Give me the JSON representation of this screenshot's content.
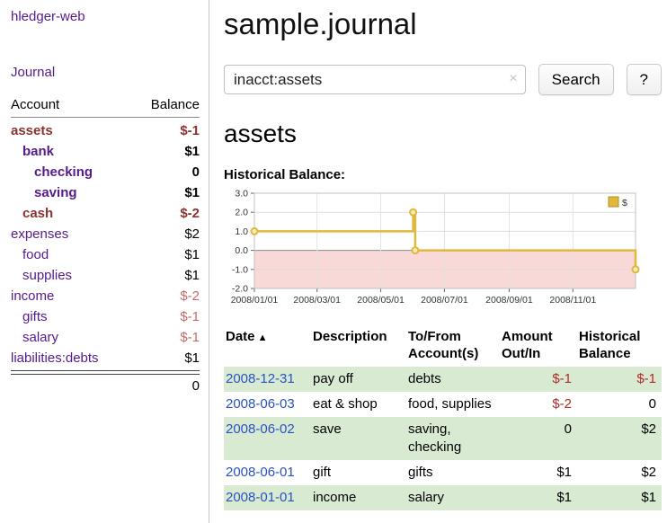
{
  "app": {
    "name": "hledger-web"
  },
  "sidebar": {
    "journal_link": "Journal",
    "account_header": "Account",
    "balance_header": "Balance",
    "accounts": [
      {
        "name": "assets",
        "depth": 0,
        "bold": true,
        "name_negative": true,
        "balance": "$-1",
        "balance_negative": true
      },
      {
        "name": "bank",
        "depth": 1,
        "bold": true,
        "name_negative": false,
        "balance": "$1",
        "balance_negative": false
      },
      {
        "name": "checking",
        "depth": 2,
        "bold": true,
        "name_negative": false,
        "balance": "0",
        "balance_negative": false
      },
      {
        "name": "saving",
        "depth": 2,
        "bold": true,
        "name_negative": false,
        "balance": "$1",
        "balance_negative": false
      },
      {
        "name": "cash",
        "depth": 1,
        "bold": true,
        "name_negative": true,
        "balance": "$-2",
        "balance_negative": true
      },
      {
        "name": "expenses",
        "depth": 0,
        "bold": false,
        "name_negative": false,
        "balance": "$2",
        "balance_negative": false
      },
      {
        "name": "food",
        "depth": 1,
        "bold": false,
        "name_negative": false,
        "balance": "$1",
        "balance_negative": false
      },
      {
        "name": "supplies",
        "depth": 1,
        "bold": false,
        "name_negative": false,
        "balance": "$1",
        "balance_negative": false
      },
      {
        "name": "income",
        "depth": 0,
        "bold": false,
        "name_negative": false,
        "balance": "$-2",
        "balance_negative": true
      },
      {
        "name": "gifts",
        "depth": 1,
        "bold": false,
        "name_negative": false,
        "balance": "$-1",
        "balance_negative": true
      },
      {
        "name": "salary",
        "depth": 1,
        "bold": false,
        "name_negative": false,
        "balance": "$-1",
        "balance_negative": true
      },
      {
        "name": "liabilities:debts",
        "depth": 0,
        "bold": false,
        "name_negative": false,
        "balance": "$1",
        "balance_negative": false
      }
    ],
    "total": "0"
  },
  "header": {
    "title": "sample.journal"
  },
  "search": {
    "value": "inacct:assets",
    "clear_icon": "×",
    "button_label": "Search",
    "help_label": "?"
  },
  "main": {
    "section_heading": "assets",
    "chart_heading": "Historical Balance:"
  },
  "chart_data": {
    "type": "line",
    "step": true,
    "title": "Historical Balance",
    "legend": {
      "position": "top-right",
      "entries": [
        "$"
      ]
    },
    "grid": true,
    "x_ticks": [
      "2008/01/01",
      "2008/03/01",
      "2008/05/01",
      "2008/07/01",
      "2008/09/01",
      "2008/11/01"
    ],
    "y_ticks": [
      3.0,
      2.0,
      1.0,
      0.0,
      -1.0,
      -2.0
    ],
    "ylim": [
      -2.0,
      3.0
    ],
    "xlim": [
      "2008-01-01",
      "2008-12-31"
    ],
    "series": [
      {
        "name": "$",
        "color": "#e0b83e",
        "points": [
          [
            "2008-01-01",
            1.0
          ],
          [
            "2008-06-01",
            2.0
          ],
          [
            "2008-06-03",
            0.0
          ],
          [
            "2008-12-31",
            -1.0
          ]
        ]
      }
    ],
    "negative_region_color": "#f9d8d8"
  },
  "register": {
    "columns": [
      {
        "label": "Date",
        "align": "left",
        "sortable": true
      },
      {
        "label": "Description",
        "align": "left"
      },
      {
        "label": "To/From Account(s)",
        "align": "left"
      },
      {
        "label": "Amount Out/In",
        "align": "right"
      },
      {
        "label": "Historical Balance",
        "align": "right"
      }
    ],
    "sort_icon": "▲",
    "rows": [
      {
        "date": "2008-12-31",
        "description": "pay off",
        "accounts": "debts",
        "amount": "$-1",
        "amount_negative": true,
        "balance": "$-1",
        "balance_negative": true
      },
      {
        "date": "2008-06-03",
        "description": "eat & shop",
        "accounts": "food, supplies",
        "amount": "$-2",
        "amount_negative": true,
        "balance": "0",
        "balance_negative": false
      },
      {
        "date": "2008-06-02",
        "description": "save",
        "accounts": "saving, checking",
        "amount": "0",
        "amount_negative": false,
        "balance": "$2",
        "balance_negative": false
      },
      {
        "date": "2008-06-01",
        "description": "gift",
        "accounts": "gifts",
        "amount": "$1",
        "amount_negative": false,
        "balance": "$2",
        "balance_negative": false
      },
      {
        "date": "2008-01-01",
        "description": "income",
        "accounts": "salary",
        "amount": "$1",
        "amount_negative": false,
        "balance": "$1",
        "balance_negative": false
      }
    ]
  }
}
